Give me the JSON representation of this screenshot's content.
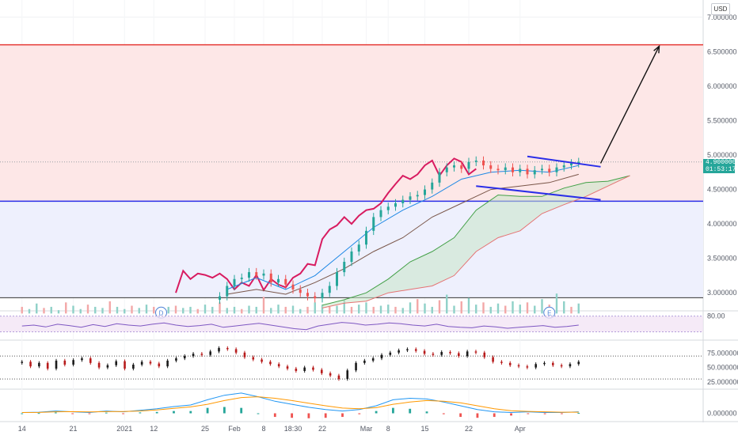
{
  "currency": "USD",
  "price_tag": {
    "price": "4.900000",
    "countdown": "01:53:17",
    "value": 4.9
  },
  "chart_data": {
    "type": "line",
    "main": {
      "scale_y": [
        2.75,
        7.25
      ],
      "y_ticks": [
        "7.000000",
        "6.500000",
        "6.000000",
        "5.500000",
        "5.000000",
        "4.500000",
        "4.000000",
        "3.500000",
        "3.000000"
      ],
      "y_tick_values": [
        7.0,
        6.5,
        6.0,
        5.5,
        5.0,
        4.5,
        4.0,
        3.5,
        3.0
      ],
      "horizontal_lines": [
        {
          "name": "resistance",
          "value": 6.6,
          "color": "#e53935"
        },
        {
          "name": "support",
          "value": 4.33,
          "color": "#2a2ee8"
        },
        {
          "name": "base",
          "value": 2.93,
          "color": "#333333"
        }
      ],
      "zones": [
        {
          "name": "upper-zone",
          "from": 4.33,
          "to": 6.6,
          "color": "#fde7e7"
        },
        {
          "name": "lower-zone",
          "from": 2.93,
          "to": 4.33,
          "color": "#eef0fd"
        }
      ],
      "channel": {
        "color": "#2a2ee8",
        "upper": [
          [
            69,
            4.98
          ],
          [
            79,
            4.83
          ]
        ],
        "lower": [
          [
            62,
            4.55
          ],
          [
            79,
            4.35
          ]
        ]
      },
      "arrow": {
        "from": [
          79,
          4.88
        ],
        "to": [
          87,
          6.58
        ]
      },
      "markers": [
        {
          "text": "D",
          "x": 19,
          "value": 2.85
        },
        {
          "text": "E",
          "x": 72,
          "value": 2.85
        }
      ],
      "price_series": [
        {
          "name": "price",
          "color": "#d81b60",
          "x": [
            21,
            22,
            23,
            24,
            25,
            26,
            27,
            28,
            29,
            30,
            31,
            32,
            33,
            34,
            35,
            36,
            37,
            38,
            39,
            40,
            41,
            42,
            43,
            44,
            45,
            46,
            47,
            48,
            49,
            50,
            51,
            52,
            53,
            54,
            55,
            56,
            57,
            58,
            59,
            60,
            61,
            62
          ],
          "y": [
            3.0,
            3.32,
            3.2,
            3.28,
            3.26,
            3.22,
            3.28,
            3.2,
            3.05,
            3.15,
            3.1,
            3.26,
            3.04,
            3.2,
            3.12,
            3.08,
            3.22,
            3.28,
            3.42,
            3.4,
            3.78,
            3.92,
            3.98,
            4.1,
            4.0,
            4.12,
            4.2,
            4.22,
            4.3,
            4.45,
            4.58,
            4.7,
            4.65,
            4.72,
            4.85,
            4.92,
            4.7,
            4.85,
            4.95,
            4.9,
            4.72,
            4.8
          ]
        },
        {
          "name": "cloud-top",
          "color": "#43a047",
          "x": [
            41,
            44,
            47,
            50,
            53,
            56,
            59,
            62,
            65,
            68,
            71,
            74,
            77,
            80,
            83
          ],
          "y": [
            2.82,
            2.9,
            3.0,
            3.2,
            3.45,
            3.6,
            3.8,
            4.2,
            4.42,
            4.4,
            4.4,
            4.52,
            4.6,
            4.62,
            4.7
          ]
        },
        {
          "name": "cloud-bottom",
          "color": "#e57373",
          "x": [
            41,
            44,
            47,
            50,
            53,
            56,
            59,
            62,
            65,
            68,
            71,
            74,
            77,
            80,
            83
          ],
          "y": [
            2.78,
            2.85,
            2.88,
            3.0,
            3.05,
            3.1,
            3.25,
            3.6,
            3.8,
            3.9,
            4.15,
            4.28,
            4.4,
            4.55,
            4.7
          ]
        },
        {
          "name": "baseline",
          "color": "#795548",
          "x": [
            28,
            32,
            36,
            40,
            44,
            48,
            52,
            56,
            60,
            64,
            68,
            72,
            76
          ],
          "y": [
            2.98,
            3.05,
            2.98,
            3.15,
            3.35,
            3.6,
            3.8,
            4.1,
            4.3,
            4.5,
            4.55,
            4.6,
            4.72
          ]
        },
        {
          "name": "conversion",
          "color": "#1e88e5",
          "x": [
            28,
            32,
            36,
            40,
            44,
            48,
            52,
            56,
            60,
            64,
            68,
            72,
            76
          ],
          "y": [
            3.05,
            3.22,
            3.05,
            3.25,
            3.6,
            3.95,
            4.2,
            4.4,
            4.65,
            4.75,
            4.78,
            4.75,
            4.85
          ]
        }
      ],
      "candles": {
        "x_start": 27,
        "x_end": 76,
        "close": [
          2.95,
          3.1,
          3.2,
          3.22,
          3.3,
          3.25,
          3.28,
          3.15,
          3.2,
          3.12,
          3.05,
          3.0,
          2.95,
          2.92,
          3.0,
          3.1,
          3.3,
          3.45,
          3.6,
          3.7,
          3.9,
          4.1,
          4.2,
          4.25,
          4.3,
          4.35,
          4.4,
          4.42,
          4.5,
          4.6,
          4.75,
          4.82,
          4.85,
          4.8,
          4.9,
          4.92,
          4.85,
          4.8,
          4.78,
          4.82,
          4.75,
          4.8,
          4.72,
          4.78,
          4.8,
          4.75,
          4.82,
          4.85,
          4.88,
          4.9
        ]
      },
      "volume": {
        "x_start": 0,
        "x_end": 76,
        "scale_max": 1,
        "values": [
          0.3,
          0.2,
          0.45,
          0.25,
          0.3,
          0.15,
          0.5,
          0.35,
          0.2,
          0.4,
          0.3,
          0.25,
          0.55,
          0.3,
          0.2,
          0.35,
          0.25,
          0.4,
          0.3,
          0.2,
          0.3,
          0.35,
          0.25,
          0.3,
          0.2,
          0.4,
          0.3,
          0.5,
          0.25,
          0.3,
          0.2,
          0.35,
          0.3,
          0.75,
          0.25,
          0.4,
          0.3,
          0.35,
          0.2,
          0.3,
          0.5,
          0.4,
          0.3,
          0.35,
          0.6,
          0.3,
          0.4,
          0.5,
          0.3,
          0.35,
          0.4,
          0.3,
          0.25,
          0.5,
          0.65,
          0.45,
          0.3,
          0.6,
          0.85,
          0.35,
          0.55,
          0.7,
          0.4,
          0.5,
          0.3,
          0.45,
          0.35,
          0.55,
          0.4,
          0.5,
          0.35,
          0.65,
          0.4,
          0.9,
          0.55,
          0.3,
          0.45
        ]
      }
    },
    "rsi_panel": {
      "ytick": "80.00",
      "band": [
        45,
        80
      ],
      "values": [
        58,
        60,
        56,
        62,
        59,
        55,
        61,
        57,
        63,
        60,
        58,
        62,
        65,
        60,
        57,
        59,
        62,
        55,
        58,
        61,
        64,
        60,
        56,
        52,
        50,
        58,
        62,
        66,
        64,
        60,
        62,
        65,
        63,
        60,
        58,
        62,
        57,
        55,
        54,
        58,
        56,
        53,
        55,
        57,
        59,
        55,
        57,
        60
      ]
    },
    "stoch_panel": {
      "yticks": [
        "75.000000",
        "50.000000",
        "25.000000"
      ],
      "ytick_values": [
        75,
        50,
        25
      ],
      "scale": [
        15,
        95
      ],
      "levels": [
        70,
        30
      ],
      "candles": [
        60,
        52,
        58,
        48,
        62,
        55,
        63,
        66,
        58,
        50,
        54,
        61,
        48,
        55,
        60,
        57,
        52,
        62,
        66,
        70,
        74,
        72,
        78,
        84,
        82,
        76,
        68,
        64,
        60,
        56,
        52,
        48,
        44,
        50,
        46,
        40,
        36,
        30,
        45,
        58,
        62,
        66,
        72,
        76,
        80,
        82,
        79,
        74,
        72,
        77,
        75,
        70,
        78,
        76,
        68,
        60,
        58,
        54,
        52,
        50,
        56,
        58,
        54,
        52,
        56,
        60
      ]
    },
    "macd_panel": {
      "ytick": "0.000000",
      "ytick_value": 0,
      "scale": [
        -1,
        3
      ],
      "macd": [
        0.1,
        0.15,
        0.3,
        0.2,
        0.1,
        0.3,
        0.2,
        0.4,
        0.6,
        0.9,
        1.1,
        1.8,
        2.4,
        2.7,
        2.2,
        1.6,
        1.2,
        0.8,
        0.5,
        0.3,
        0.5,
        1.0,
        1.8,
        2.0,
        1.9,
        1.5,
        1.0,
        0.5,
        0.2,
        0.1,
        0.2,
        0.1,
        0.1,
        0.2
      ],
      "signal": [
        0.1,
        0.12,
        0.2,
        0.22,
        0.18,
        0.22,
        0.24,
        0.3,
        0.45,
        0.65,
        0.85,
        1.2,
        1.7,
        2.1,
        2.2,
        2.0,
        1.7,
        1.35,
        1.0,
        0.7,
        0.6,
        0.75,
        1.2,
        1.5,
        1.7,
        1.6,
        1.4,
        1.0,
        0.6,
        0.35,
        0.25,
        0.2,
        0.15,
        0.15
      ],
      "hist_pos": "#26a69a",
      "hist_neg": "#ef5350"
    },
    "x_axis": {
      "domain": [
        -3,
        93
      ],
      "ticks": [
        {
          "x": 0,
          "label": "14"
        },
        {
          "x": 7,
          "label": "21"
        },
        {
          "x": 14,
          "label": "2021"
        },
        {
          "x": 18,
          "label": "12"
        },
        {
          "x": 25,
          "label": "25"
        },
        {
          "x": 29,
          "label": "Feb"
        },
        {
          "x": 33,
          "label": "8"
        },
        {
          "x": 37,
          "label": "18:30"
        },
        {
          "x": 41,
          "label": "22"
        },
        {
          "x": 47,
          "label": "Mar"
        },
        {
          "x": 50,
          "label": "8"
        },
        {
          "x": 55,
          "label": "15"
        },
        {
          "x": 61,
          "label": "22"
        },
        {
          "x": 68,
          "label": "Apr"
        }
      ]
    }
  }
}
